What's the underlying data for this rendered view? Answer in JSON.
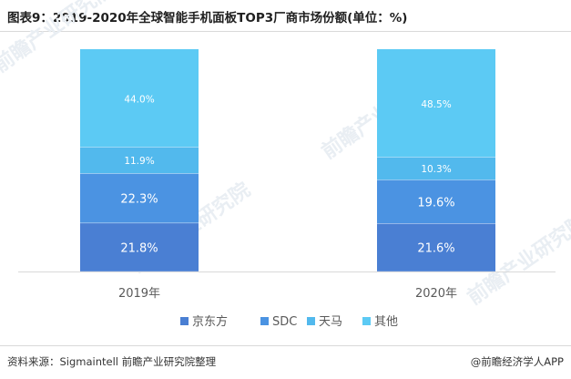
{
  "title": "图表9：2019-2020年全球智能手机面板TOP3厂商市场份额(单位：%)",
  "source": "资料来源：Sigmaintell 前瞻产业研究院整理",
  "brand": "@前瞻经济学人APP",
  "watermark": "前瞻产业研究院",
  "chart_data": {
    "type": "bar",
    "stacked": true,
    "categories": [
      "2019年",
      "2020年"
    ],
    "series": [
      {
        "name": "京东方",
        "values": [
          21.8,
          21.6
        ],
        "labels": [
          "21.8%",
          "21.6%"
        ],
        "color": "#4a7fd3"
      },
      {
        "name": "SDC",
        "values": [
          22.3,
          19.6
        ],
        "labels": [
          "22.3%",
          "19.6%"
        ],
        "color": "#4b93e2"
      },
      {
        "name": "天马",
        "values": [
          11.9,
          10.3
        ],
        "labels": [
          "11.9%",
          "10.3%"
        ],
        "color": "#52b9ed"
      },
      {
        "name": "其他",
        "values": [
          44.0,
          48.5
        ],
        "labels": [
          "44.0%",
          "48.5%"
        ],
        "color": "#5ccaf4"
      }
    ],
    "ylim": [
      0,
      100
    ],
    "grid": false,
    "legend_position": "bottom"
  }
}
